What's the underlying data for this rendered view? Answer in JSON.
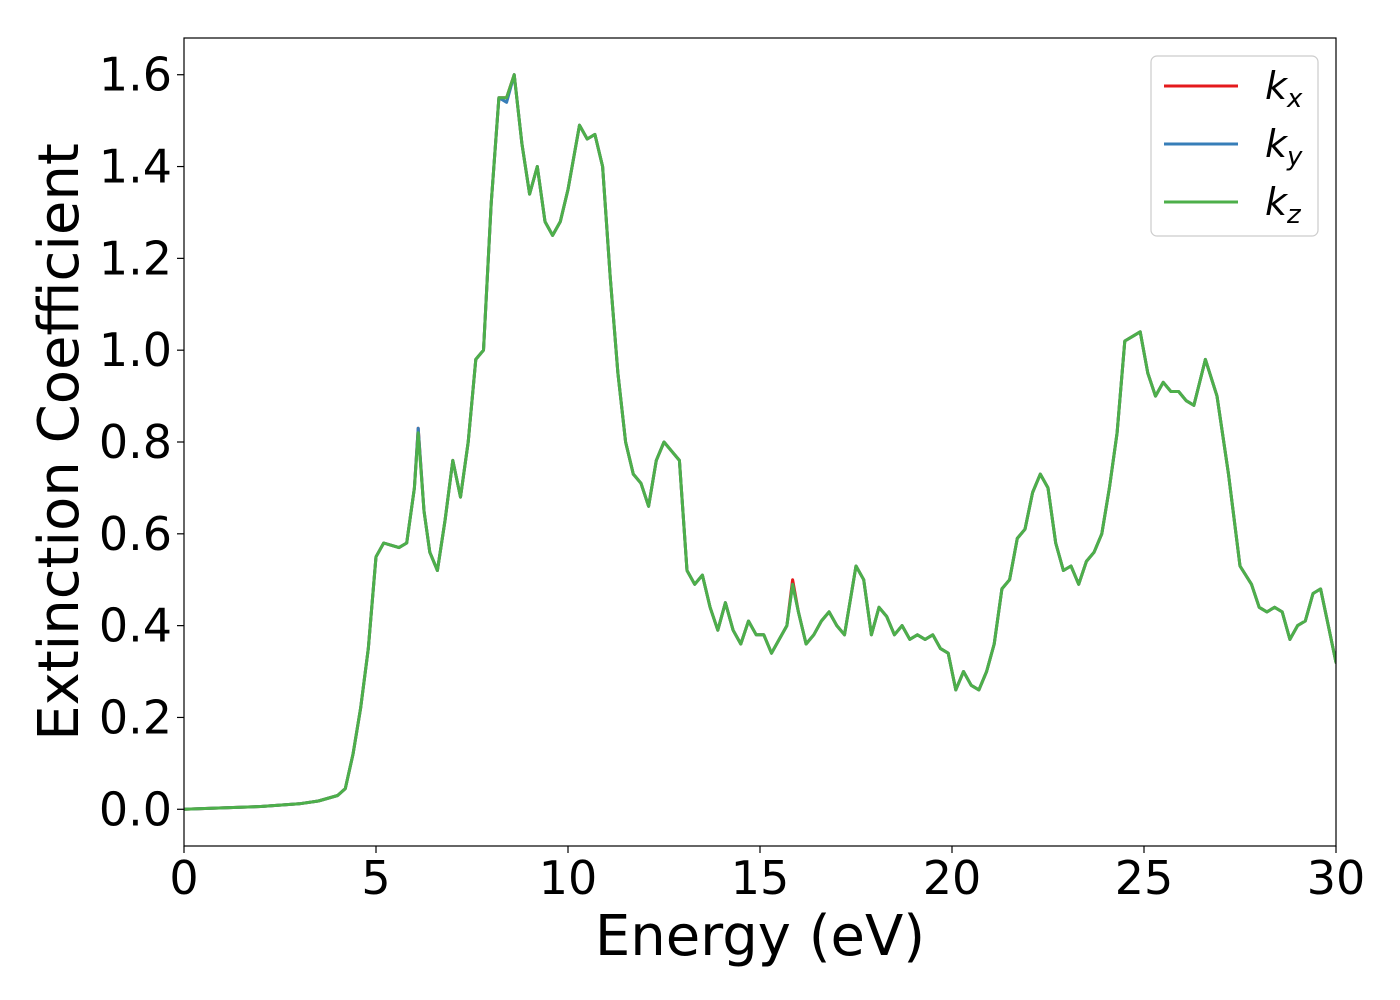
{
  "chart_data": {
    "type": "line",
    "xlabel": "Energy (eV)",
    "ylabel": "Extinction Coefficient",
    "xlim": [
      0,
      30
    ],
    "ylim": [
      -0.08,
      1.68
    ],
    "xticks": [
      0,
      5,
      10,
      15,
      20,
      25,
      30
    ],
    "yticks": [
      0.0,
      0.2,
      0.4,
      0.6,
      0.8,
      1.0,
      1.2,
      1.4,
      1.6
    ],
    "xtick_labels": [
      "0",
      "5",
      "10",
      "15",
      "20",
      "25",
      "30"
    ],
    "ytick_labels": [
      "0.0",
      "0.2",
      "0.4",
      "0.6",
      "0.8",
      "1.0",
      "1.2",
      "1.4",
      "1.6"
    ],
    "grid": false,
    "legend_position": "top-right",
    "series": [
      {
        "name": "k_x",
        "label_main": "k",
        "label_sub": "x",
        "color": "#e41a1c",
        "x": [
          0,
          1,
          2,
          3,
          3.5,
          4,
          4.2,
          4.4,
          4.6,
          4.8,
          5.0,
          5.2,
          5.4,
          5.6,
          5.8,
          6.0,
          6.1,
          6.25,
          6.4,
          6.6,
          6.8,
          7.0,
          7.2,
          7.4,
          7.6,
          7.8,
          8.0,
          8.2,
          8.4,
          8.6,
          8.8,
          9.0,
          9.2,
          9.4,
          9.6,
          9.8,
          10.0,
          10.3,
          10.5,
          10.7,
          10.9,
          11.1,
          11.3,
          11.5,
          11.7,
          11.9,
          12.1,
          12.3,
          12.5,
          12.7,
          12.9,
          13.1,
          13.3,
          13.5,
          13.7,
          13.9,
          14.1,
          14.3,
          14.5,
          14.7,
          14.9,
          15.1,
          15.3,
          15.5,
          15.7,
          15.85,
          16.0,
          16.2,
          16.4,
          16.6,
          16.8,
          17.0,
          17.2,
          17.5,
          17.7,
          17.9,
          18.1,
          18.3,
          18.5,
          18.7,
          18.9,
          19.1,
          19.3,
          19.5,
          19.7,
          19.9,
          20.1,
          20.3,
          20.5,
          20.7,
          20.9,
          21.1,
          21.3,
          21.5,
          21.7,
          21.9,
          22.1,
          22.3,
          22.5,
          22.7,
          22.9,
          23.1,
          23.3,
          23.5,
          23.7,
          23.9,
          24.1,
          24.3,
          24.5,
          24.7,
          24.9,
          25.1,
          25.3,
          25.5,
          25.7,
          25.9,
          26.1,
          26.3,
          26.6,
          26.9,
          27.2,
          27.5,
          27.8,
          28.0,
          28.2,
          28.4,
          28.6,
          28.8,
          29.0,
          29.2,
          29.4,
          29.6,
          29.8,
          30.0
        ],
        "y": [
          0.0,
          0.003,
          0.006,
          0.012,
          0.018,
          0.03,
          0.045,
          0.12,
          0.22,
          0.35,
          0.55,
          0.58,
          0.575,
          0.57,
          0.58,
          0.7,
          0.83,
          0.65,
          0.56,
          0.52,
          0.63,
          0.76,
          0.68,
          0.8,
          0.98,
          1.0,
          1.32,
          1.55,
          1.55,
          1.6,
          1.45,
          1.34,
          1.4,
          1.28,
          1.25,
          1.28,
          1.35,
          1.49,
          1.46,
          1.47,
          1.4,
          1.16,
          0.95,
          0.8,
          0.73,
          0.71,
          0.66,
          0.76,
          0.8,
          0.78,
          0.76,
          0.52,
          0.49,
          0.51,
          0.44,
          0.39,
          0.45,
          0.39,
          0.36,
          0.41,
          0.38,
          0.38,
          0.34,
          0.37,
          0.4,
          0.5,
          0.43,
          0.36,
          0.38,
          0.41,
          0.43,
          0.4,
          0.38,
          0.53,
          0.5,
          0.38,
          0.44,
          0.42,
          0.38,
          0.4,
          0.37,
          0.38,
          0.37,
          0.38,
          0.35,
          0.34,
          0.26,
          0.3,
          0.27,
          0.26,
          0.3,
          0.36,
          0.48,
          0.5,
          0.59,
          0.61,
          0.69,
          0.73,
          0.7,
          0.58,
          0.52,
          0.53,
          0.49,
          0.54,
          0.56,
          0.6,
          0.7,
          0.82,
          1.02,
          1.03,
          1.04,
          0.95,
          0.9,
          0.93,
          0.91,
          0.91,
          0.89,
          0.88,
          0.98,
          0.9,
          0.73,
          0.53,
          0.49,
          0.44,
          0.43,
          0.44,
          0.43,
          0.37,
          0.4,
          0.41,
          0.47,
          0.48,
          0.4,
          0.32
        ]
      },
      {
        "name": "k_y",
        "label_main": "k",
        "label_sub": "y",
        "color": "#377eb8",
        "x": [
          0,
          1,
          2,
          3,
          3.5,
          4,
          4.2,
          4.4,
          4.6,
          4.8,
          5.0,
          5.2,
          5.4,
          5.6,
          5.8,
          6.0,
          6.1,
          6.25,
          6.4,
          6.6,
          6.8,
          7.0,
          7.2,
          7.4,
          7.6,
          7.8,
          8.0,
          8.2,
          8.4,
          8.6,
          8.8,
          9.0,
          9.2,
          9.4,
          9.6,
          9.8,
          10.0,
          10.3,
          10.5,
          10.7,
          10.9,
          11.1,
          11.3,
          11.5,
          11.7,
          11.9,
          12.1,
          12.3,
          12.5,
          12.7,
          12.9,
          13.1,
          13.3,
          13.5,
          13.7,
          13.9,
          14.1,
          14.3,
          14.5,
          14.7,
          14.9,
          15.1,
          15.3,
          15.5,
          15.7,
          15.85,
          16.0,
          16.2,
          16.4,
          16.6,
          16.8,
          17.0,
          17.2,
          17.5,
          17.7,
          17.9,
          18.1,
          18.3,
          18.5,
          18.7,
          18.9,
          19.1,
          19.3,
          19.5,
          19.7,
          19.9,
          20.1,
          20.3,
          20.5,
          20.7,
          20.9,
          21.1,
          21.3,
          21.5,
          21.7,
          21.9,
          22.1,
          22.3,
          22.5,
          22.7,
          22.9,
          23.1,
          23.3,
          23.5,
          23.7,
          23.9,
          24.1,
          24.3,
          24.5,
          24.7,
          24.9,
          25.1,
          25.3,
          25.5,
          25.7,
          25.9,
          26.1,
          26.3,
          26.6,
          26.9,
          27.2,
          27.5,
          27.8,
          28.0,
          28.2,
          28.4,
          28.6,
          28.8,
          29.0,
          29.2,
          29.4,
          29.6,
          29.8,
          30.0
        ],
        "y": [
          0.0,
          0.003,
          0.006,
          0.012,
          0.018,
          0.03,
          0.045,
          0.12,
          0.22,
          0.35,
          0.55,
          0.58,
          0.575,
          0.57,
          0.58,
          0.7,
          0.83,
          0.65,
          0.56,
          0.52,
          0.63,
          0.76,
          0.68,
          0.8,
          0.98,
          1.0,
          1.32,
          1.55,
          1.54,
          1.6,
          1.45,
          1.34,
          1.4,
          1.28,
          1.25,
          1.28,
          1.35,
          1.49,
          1.46,
          1.47,
          1.4,
          1.16,
          0.95,
          0.8,
          0.73,
          0.71,
          0.66,
          0.76,
          0.8,
          0.78,
          0.76,
          0.52,
          0.49,
          0.51,
          0.44,
          0.39,
          0.45,
          0.39,
          0.36,
          0.41,
          0.38,
          0.38,
          0.34,
          0.37,
          0.4,
          0.49,
          0.43,
          0.36,
          0.38,
          0.41,
          0.43,
          0.4,
          0.38,
          0.53,
          0.5,
          0.38,
          0.44,
          0.42,
          0.38,
          0.4,
          0.37,
          0.38,
          0.37,
          0.38,
          0.35,
          0.34,
          0.26,
          0.3,
          0.27,
          0.26,
          0.3,
          0.36,
          0.48,
          0.5,
          0.59,
          0.61,
          0.69,
          0.73,
          0.7,
          0.58,
          0.52,
          0.53,
          0.49,
          0.54,
          0.56,
          0.6,
          0.7,
          0.82,
          1.02,
          1.03,
          1.04,
          0.95,
          0.9,
          0.93,
          0.91,
          0.91,
          0.89,
          0.88,
          0.98,
          0.9,
          0.73,
          0.53,
          0.49,
          0.44,
          0.43,
          0.44,
          0.43,
          0.37,
          0.4,
          0.41,
          0.47,
          0.48,
          0.4,
          0.32
        ]
      },
      {
        "name": "k_z",
        "label_main": "k",
        "label_sub": "z",
        "color": "#4daf4a",
        "x": [
          0,
          1,
          2,
          3,
          3.5,
          4,
          4.2,
          4.4,
          4.6,
          4.8,
          5.0,
          5.2,
          5.4,
          5.6,
          5.8,
          6.0,
          6.1,
          6.25,
          6.4,
          6.6,
          6.8,
          7.0,
          7.2,
          7.4,
          7.6,
          7.8,
          8.0,
          8.2,
          8.4,
          8.6,
          8.8,
          9.0,
          9.2,
          9.4,
          9.6,
          9.8,
          10.0,
          10.3,
          10.5,
          10.7,
          10.9,
          11.1,
          11.3,
          11.5,
          11.7,
          11.9,
          12.1,
          12.3,
          12.5,
          12.7,
          12.9,
          13.1,
          13.3,
          13.5,
          13.7,
          13.9,
          14.1,
          14.3,
          14.5,
          14.7,
          14.9,
          15.1,
          15.3,
          15.5,
          15.7,
          15.85,
          16.0,
          16.2,
          16.4,
          16.6,
          16.8,
          17.0,
          17.2,
          17.5,
          17.7,
          17.9,
          18.1,
          18.3,
          18.5,
          18.7,
          18.9,
          19.1,
          19.3,
          19.5,
          19.7,
          19.9,
          20.1,
          20.3,
          20.5,
          20.7,
          20.9,
          21.1,
          21.3,
          21.5,
          21.7,
          21.9,
          22.1,
          22.3,
          22.5,
          22.7,
          22.9,
          23.1,
          23.3,
          23.5,
          23.7,
          23.9,
          24.1,
          24.3,
          24.5,
          24.7,
          24.9,
          25.1,
          25.3,
          25.5,
          25.7,
          25.9,
          26.1,
          26.3,
          26.6,
          26.9,
          27.2,
          27.5,
          27.8,
          28.0,
          28.2,
          28.4,
          28.6,
          28.8,
          29.0,
          29.2,
          29.4,
          29.6,
          29.8,
          30.0
        ],
        "y": [
          0.0,
          0.003,
          0.006,
          0.012,
          0.018,
          0.03,
          0.045,
          0.12,
          0.22,
          0.35,
          0.55,
          0.58,
          0.575,
          0.57,
          0.58,
          0.7,
          0.82,
          0.65,
          0.56,
          0.52,
          0.63,
          0.76,
          0.68,
          0.8,
          0.98,
          1.0,
          1.32,
          1.55,
          1.55,
          1.6,
          1.45,
          1.34,
          1.4,
          1.28,
          1.25,
          1.28,
          1.35,
          1.49,
          1.46,
          1.47,
          1.4,
          1.16,
          0.95,
          0.8,
          0.73,
          0.71,
          0.66,
          0.76,
          0.8,
          0.78,
          0.76,
          0.52,
          0.49,
          0.51,
          0.44,
          0.39,
          0.45,
          0.39,
          0.36,
          0.41,
          0.38,
          0.38,
          0.34,
          0.37,
          0.4,
          0.49,
          0.43,
          0.36,
          0.38,
          0.41,
          0.43,
          0.4,
          0.38,
          0.53,
          0.5,
          0.38,
          0.44,
          0.42,
          0.38,
          0.4,
          0.37,
          0.38,
          0.37,
          0.38,
          0.35,
          0.34,
          0.26,
          0.3,
          0.27,
          0.26,
          0.3,
          0.36,
          0.48,
          0.5,
          0.59,
          0.61,
          0.69,
          0.73,
          0.7,
          0.58,
          0.52,
          0.53,
          0.49,
          0.54,
          0.56,
          0.6,
          0.7,
          0.82,
          1.02,
          1.03,
          1.04,
          0.95,
          0.9,
          0.93,
          0.91,
          0.91,
          0.89,
          0.88,
          0.98,
          0.9,
          0.73,
          0.53,
          0.49,
          0.44,
          0.43,
          0.44,
          0.43,
          0.37,
          0.4,
          0.41,
          0.47,
          0.48,
          0.4,
          0.32
        ]
      }
    ]
  }
}
